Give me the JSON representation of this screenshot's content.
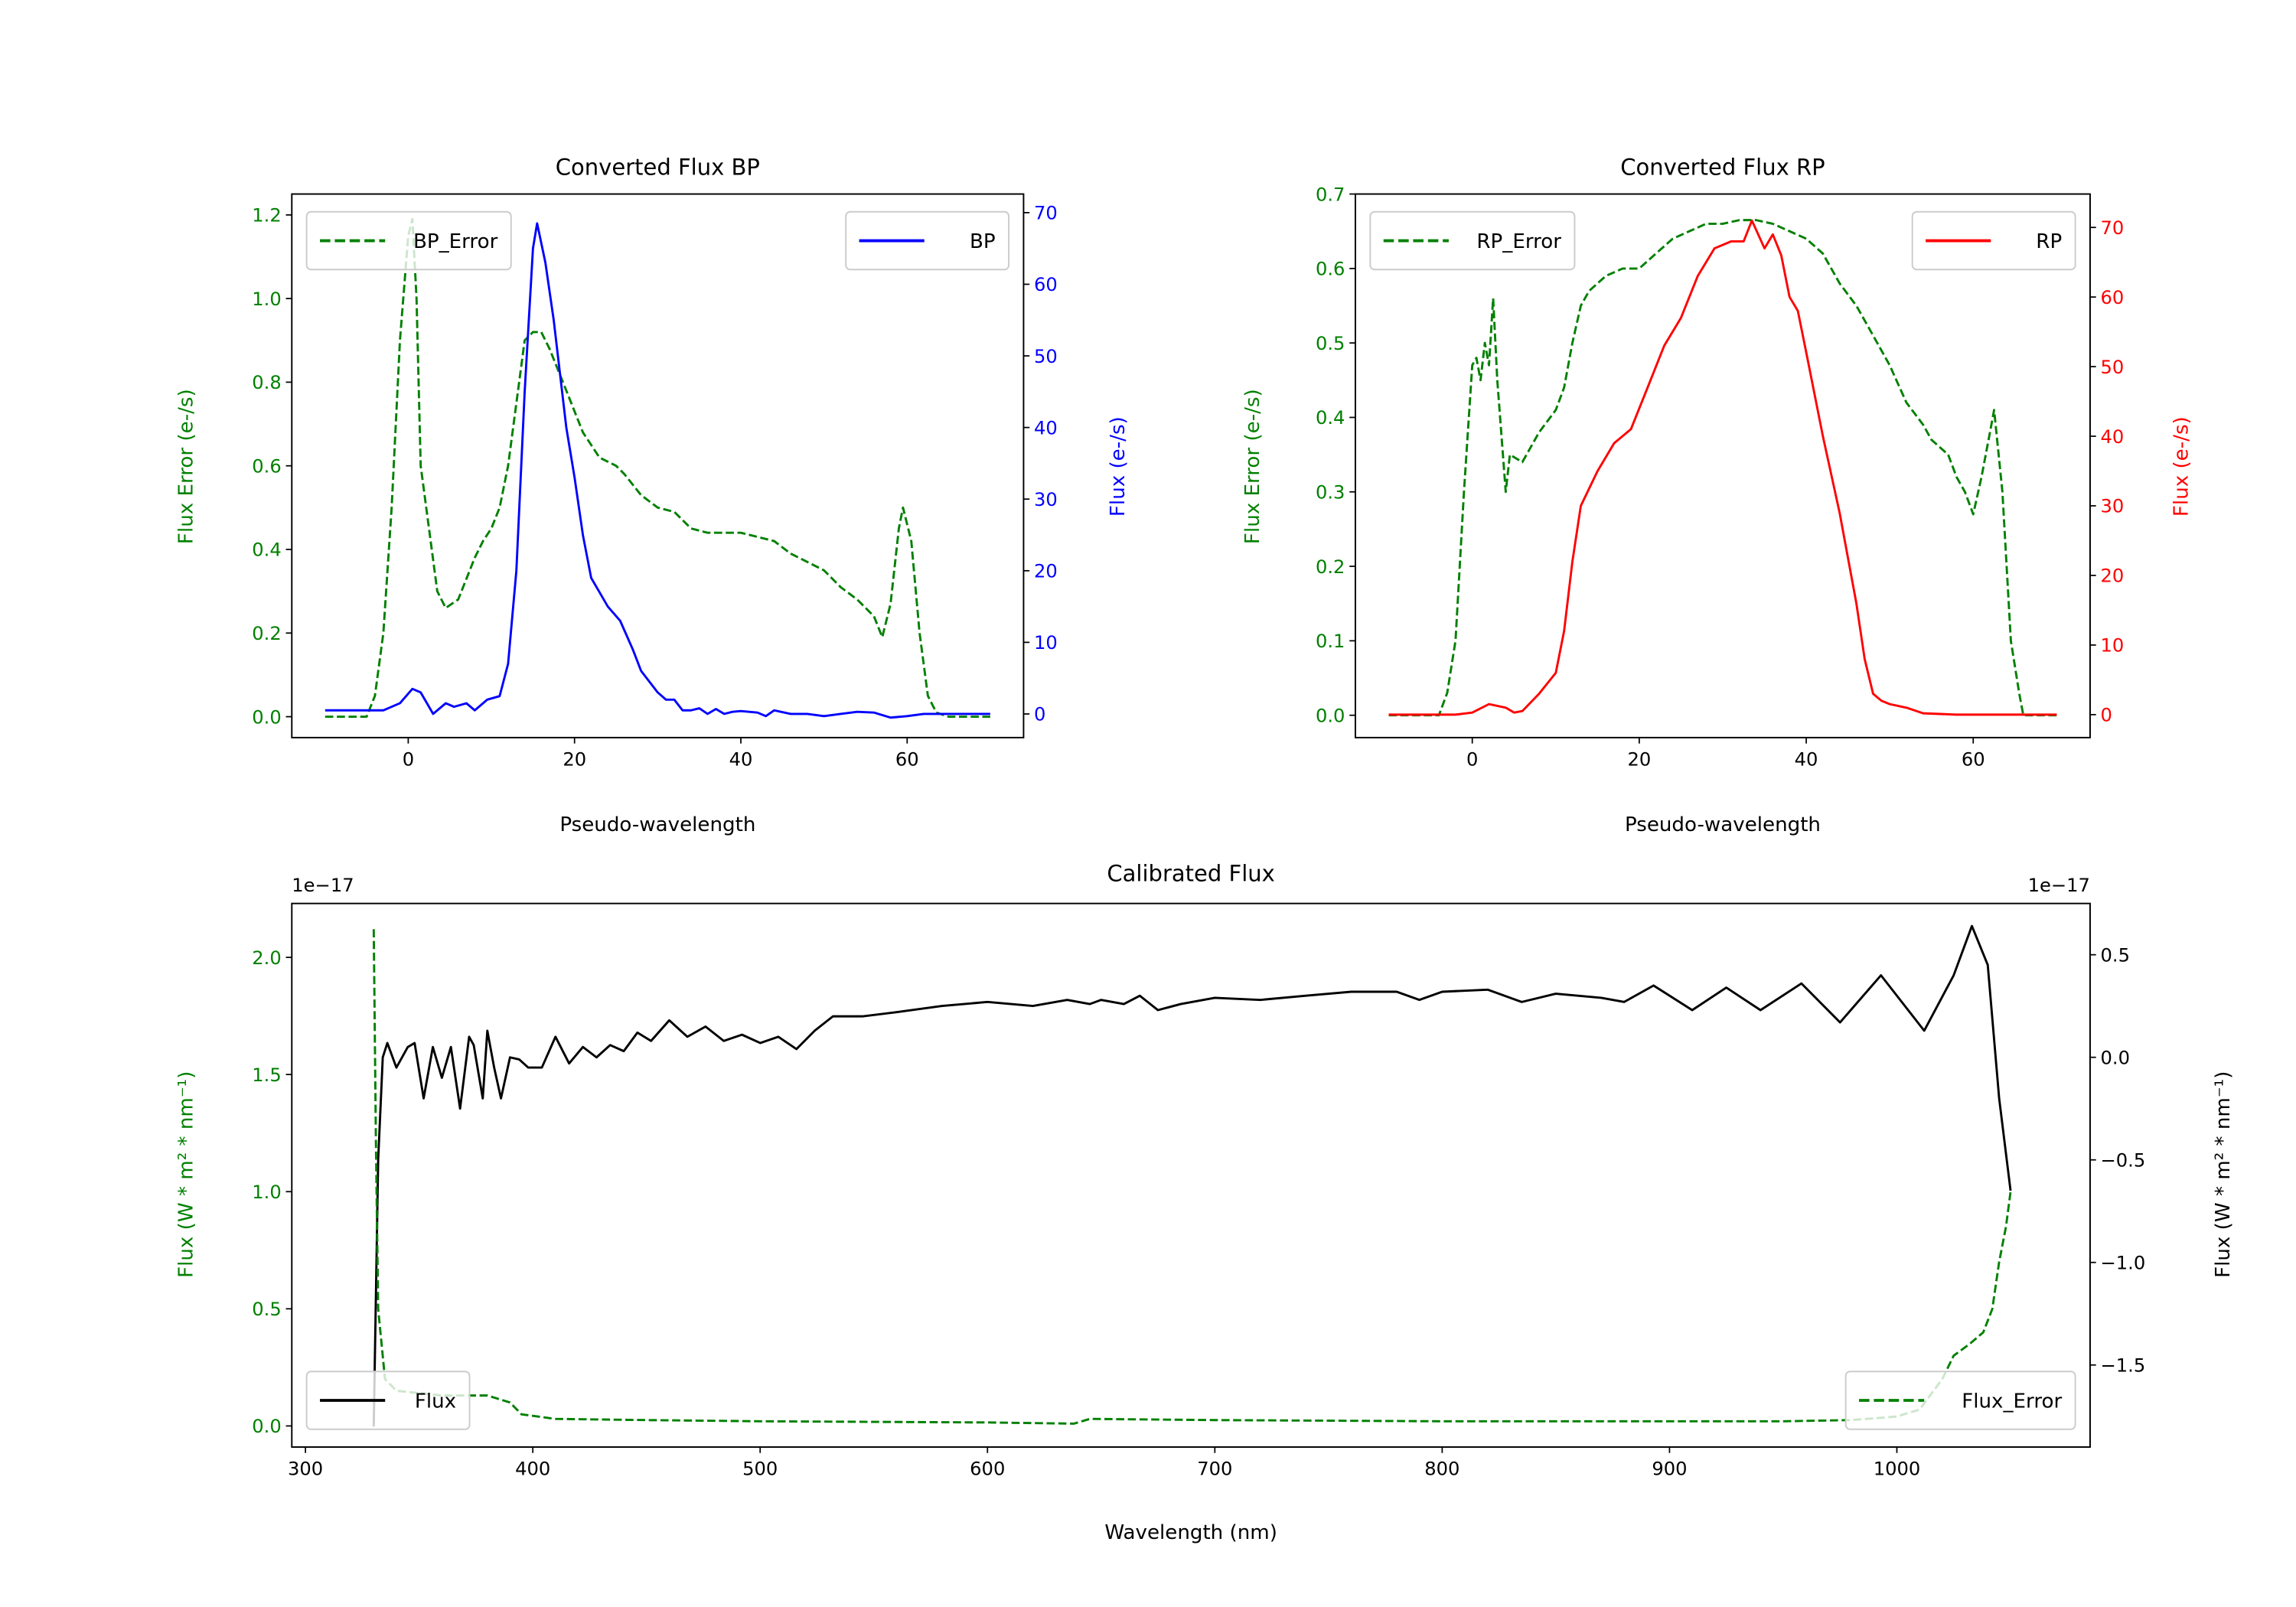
{
  "colors": {
    "green": "#008000",
    "blue": "#0000ff",
    "red": "#ff0000",
    "black": "#000000"
  },
  "chart_data": [
    {
      "type": "line",
      "title": "Converted Flux BP",
      "xlabel": "Pseudo-wavelength",
      "ylabel_left": "Flux Error (e-/s)",
      "ylabel_right": "Flux (e-/s)",
      "xlim": [
        -14,
        74
      ],
      "ylim_left": [
        -0.05,
        1.25
      ],
      "ylim_right": [
        -3.3,
        72.6
      ],
      "xticks": [
        0,
        20,
        40,
        60
      ],
      "xtick_labels": [
        "0",
        "20",
        "40",
        "60"
      ],
      "yticks_left": [
        0,
        0.2,
        0.4,
        0.6,
        0.8,
        1.0,
        1.2
      ],
      "ytick_labels_left": [
        "0.0",
        "0.2",
        "0.4",
        "0.6",
        "0.8",
        "1.0",
        "1.2"
      ],
      "yticks_right": [
        0,
        10,
        20,
        30,
        40,
        50,
        60,
        70
      ],
      "ytick_labels_right": [
        "0",
        "10",
        "20",
        "30",
        "40",
        "50",
        "60",
        "70"
      ],
      "series": [
        {
          "name": "BP_Error",
          "axis": "left",
          "style": "dashed",
          "color": "#008000",
          "legend": "upper-left",
          "x": [
            -10,
            -5,
            -4,
            -3,
            -2,
            -1,
            0,
            0.5,
            1,
            1.5,
            2.5,
            3.5,
            4.5,
            6,
            7,
            8,
            9,
            10,
            11,
            12,
            13,
            14,
            15,
            16,
            17,
            19,
            21,
            23,
            25,
            26,
            28,
            30,
            32,
            34,
            36,
            38,
            40,
            42,
            44,
            46,
            48,
            50,
            52,
            54,
            56,
            57,
            58,
            59,
            59.5,
            60.5,
            61.5,
            62.5,
            63.5,
            65,
            70
          ],
          "y": [
            0,
            0,
            0.05,
            0.2,
            0.5,
            0.9,
            1.15,
            1.19,
            1.0,
            0.6,
            0.45,
            0.3,
            0.26,
            0.28,
            0.33,
            0.38,
            0.42,
            0.45,
            0.5,
            0.6,
            0.75,
            0.9,
            0.92,
            0.92,
            0.88,
            0.78,
            0.68,
            0.62,
            0.6,
            0.58,
            0.53,
            0.5,
            0.49,
            0.45,
            0.44,
            0.44,
            0.44,
            0.43,
            0.42,
            0.39,
            0.37,
            0.35,
            0.31,
            0.28,
            0.24,
            0.19,
            0.27,
            0.45,
            0.5,
            0.42,
            0.2,
            0.05,
            0.01,
            0,
            0
          ]
        },
        {
          "name": "BP",
          "axis": "right",
          "style": "solid",
          "color": "#0000ff",
          "legend": "upper-right",
          "x": [
            -10,
            -3,
            -1,
            0.5,
            1.5,
            3,
            4.5,
            5.5,
            7,
            8,
            9.5,
            11,
            12,
            13,
            14,
            15,
            15.5,
            16.5,
            17.5,
            19,
            20,
            21,
            22,
            23,
            24,
            25.5,
            27,
            28,
            30,
            31,
            32,
            33,
            34,
            35,
            36,
            37,
            38,
            39,
            40,
            42,
            43,
            44,
            46,
            48,
            50,
            52,
            54,
            56,
            58,
            60,
            62,
            70
          ],
          "y": [
            0.5,
            0.5,
            1.5,
            3.5,
            3,
            0,
            1.5,
            1,
            1.5,
            0.5,
            2,
            2.5,
            7,
            20,
            45,
            65,
            68.5,
            63,
            55,
            40,
            33,
            25,
            19,
            17,
            15,
            13,
            9,
            6,
            3,
            2,
            2,
            0.5,
            0.5,
            0.8,
            0,
            0.7,
            0,
            0.3,
            0.4,
            0.2,
            -0.3,
            0.5,
            0,
            0,
            -0.3,
            0,
            0.3,
            0.2,
            -0.5,
            -0.3,
            0,
            0
          ]
        }
      ]
    },
    {
      "type": "line",
      "title": "Converted Flux RP",
      "xlabel": "Pseudo-wavelength",
      "ylabel_left": "Flux Error (e-/s)",
      "ylabel_right": "Flux (e-/s)",
      "xlim": [
        -14,
        74
      ],
      "ylim_left": [
        -0.03,
        0.7
      ],
      "ylim_right": [
        -3.3,
        74.8
      ],
      "xticks": [
        0,
        20,
        40,
        60
      ],
      "xtick_labels": [
        "0",
        "20",
        "40",
        "60"
      ],
      "yticks_left": [
        0,
        0.1,
        0.2,
        0.3,
        0.4,
        0.5,
        0.6,
        0.7
      ],
      "ytick_labels_left": [
        "0.0",
        "0.1",
        "0.2",
        "0.3",
        "0.4",
        "0.5",
        "0.6",
        "0.7"
      ],
      "yticks_right": [
        0,
        10,
        20,
        30,
        40,
        50,
        60,
        70
      ],
      "ytick_labels_right": [
        "0",
        "10",
        "20",
        "30",
        "40",
        "50",
        "60",
        "70"
      ],
      "series": [
        {
          "name": "RP_Error",
          "axis": "left",
          "style": "dashed",
          "color": "#008000",
          "legend": "upper-left",
          "x": [
            -10,
            -4,
            -3,
            -2,
            -1,
            0,
            0.5,
            1,
            1.5,
            2,
            2.5,
            3,
            4,
            4.5,
            6,
            7,
            8,
            10,
            11,
            12,
            13,
            14,
            16,
            18,
            20,
            22,
            24,
            26,
            28,
            30,
            32,
            34,
            36,
            38,
            40,
            42,
            44,
            46,
            48,
            50,
            52,
            54,
            55,
            57,
            58,
            59,
            60,
            61,
            62,
            62.5,
            63.5,
            64.5,
            65.5,
            66,
            70
          ],
          "y": [
            0,
            0,
            0.03,
            0.1,
            0.3,
            0.47,
            0.48,
            0.45,
            0.5,
            0.47,
            0.56,
            0.45,
            0.3,
            0.35,
            0.34,
            0.36,
            0.38,
            0.41,
            0.44,
            0.5,
            0.55,
            0.57,
            0.59,
            0.6,
            0.6,
            0.62,
            0.64,
            0.65,
            0.66,
            0.66,
            0.665,
            0.665,
            0.66,
            0.65,
            0.64,
            0.62,
            0.58,
            0.55,
            0.51,
            0.47,
            0.42,
            0.39,
            0.37,
            0.35,
            0.32,
            0.3,
            0.27,
            0.32,
            0.38,
            0.41,
            0.3,
            0.1,
            0.03,
            0,
            0
          ]
        },
        {
          "name": "RP",
          "axis": "right",
          "style": "solid",
          "color": "#ff0000",
          "legend": "upper-right",
          "x": [
            -10,
            -2,
            0,
            2,
            4,
            5,
            6,
            8,
            10,
            11,
            12,
            13,
            15,
            17,
            19,
            21,
            23,
            25,
            27,
            29,
            31,
            32.5,
            33.5,
            35,
            36,
            37,
            38,
            39,
            40,
            42,
            44,
            46,
            47,
            48,
            49,
            50,
            52,
            54,
            58,
            70
          ],
          "y": [
            0,
            0,
            0.3,
            1.5,
            1,
            0.3,
            0.5,
            3,
            6,
            12,
            22,
            30,
            35,
            39,
            41,
            47,
            53,
            57,
            63,
            67,
            68,
            68,
            71,
            67,
            69,
            66,
            60,
            58,
            52,
            40,
            29,
            16,
            8,
            3,
            2,
            1.5,
            1,
            0.2,
            0,
            0
          ]
        }
      ]
    },
    {
      "type": "line",
      "title": "Calibrated Flux",
      "xlabel": "Wavelength (nm)",
      "ylabel_left": "Flux (W * m² * nm⁻¹)",
      "ylabel_right": "Flux (W * m² * nm⁻¹)",
      "offset_left": "1e−17",
      "offset_right": "1e−17",
      "xlim": [
        294,
        1085
      ],
      "ylim_left": [
        -0.09,
        2.23
      ],
      "ylim_right": [
        -1.9,
        0.75
      ],
      "xticks": [
        300,
        400,
        500,
        600,
        700,
        800,
        900,
        1000
      ],
      "xtick_labels": [
        "300",
        "400",
        "500",
        "600",
        "700",
        "800",
        "900",
        "1000"
      ],
      "yticks_left": [
        0,
        0.5,
        1.0,
        1.5,
        2.0
      ],
      "ytick_labels_left": [
        "0.0",
        "0.5",
        "1.0",
        "1.5",
        "2.0"
      ],
      "yticks_right": [
        -1.5,
        -1.0,
        -0.5,
        0.0,
        0.5
      ],
      "ytick_labels_right": [
        "−1.5",
        "−1.0",
        "−0.5",
        "0.0",
        "0.5"
      ],
      "series": [
        {
          "name": "Flux",
          "axis": "right",
          "style": "solid",
          "color": "#000000",
          "legend": "lower-left",
          "x": [
            330,
            332,
            334,
            336,
            340,
            345,
            348,
            352,
            356,
            360,
            364,
            368,
            372,
            374,
            378,
            380,
            383,
            386,
            390,
            394,
            398,
            404,
            410,
            416,
            422,
            428,
            434,
            440,
            446,
            452,
            460,
            468,
            476,
            484,
            492,
            500,
            508,
            516,
            524,
            532,
            545,
            560,
            580,
            600,
            620,
            635,
            645,
            650,
            660,
            667,
            675,
            685,
            700,
            720,
            740,
            760,
            780,
            790,
            800,
            820,
            835,
            850,
            870,
            880,
            893,
            910,
            925,
            940,
            958,
            975,
            993,
            1012,
            1025,
            1033,
            1040,
            1045,
            1050
          ],
          "y": [
            -1.8,
            -0.5,
            0.0,
            0.07,
            -0.05,
            0.05,
            0.07,
            -0.2,
            0.05,
            -0.1,
            0.05,
            -0.25,
            0.1,
            0.06,
            -0.2,
            0.13,
            -0.05,
            -0.2,
            0.0,
            -0.01,
            -0.05,
            -0.05,
            0.1,
            -0.03,
            0.05,
            0.0,
            0.06,
            0.03,
            0.12,
            0.08,
            0.18,
            0.1,
            0.15,
            0.08,
            0.11,
            0.07,
            0.1,
            0.04,
            0.13,
            0.2,
            0.2,
            0.22,
            0.25,
            0.27,
            0.25,
            0.28,
            0.26,
            0.28,
            0.26,
            0.3,
            0.23,
            0.26,
            0.29,
            0.28,
            0.3,
            0.32,
            0.32,
            0.28,
            0.32,
            0.33,
            0.27,
            0.31,
            0.29,
            0.27,
            0.35,
            0.23,
            0.34,
            0.23,
            0.36,
            0.17,
            0.4,
            0.13,
            0.4,
            0.64,
            0.45,
            -0.2,
            -0.65
          ]
        },
        {
          "name": "Flux_Error",
          "axis": "left",
          "style": "dashed",
          "color": "#008000",
          "legend": "lower-right",
          "x": [
            330,
            331,
            332,
            335,
            340,
            360,
            380,
            390,
            395,
            410,
            450,
            500,
            600,
            638,
            645,
            700,
            800,
            900,
            950,
            980,
            1000,
            1010,
            1020,
            1025,
            1032,
            1038,
            1042,
            1045,
            1048,
            1050
          ],
          "y": [
            2.12,
            1.2,
            0.5,
            0.2,
            0.15,
            0.13,
            0.13,
            0.1,
            0.05,
            0.03,
            0.025,
            0.02,
            0.015,
            0.01,
            0.03,
            0.025,
            0.02,
            0.02,
            0.02,
            0.025,
            0.04,
            0.07,
            0.2,
            0.3,
            0.35,
            0.4,
            0.5,
            0.7,
            0.85,
            1.0
          ]
        }
      ]
    }
  ]
}
